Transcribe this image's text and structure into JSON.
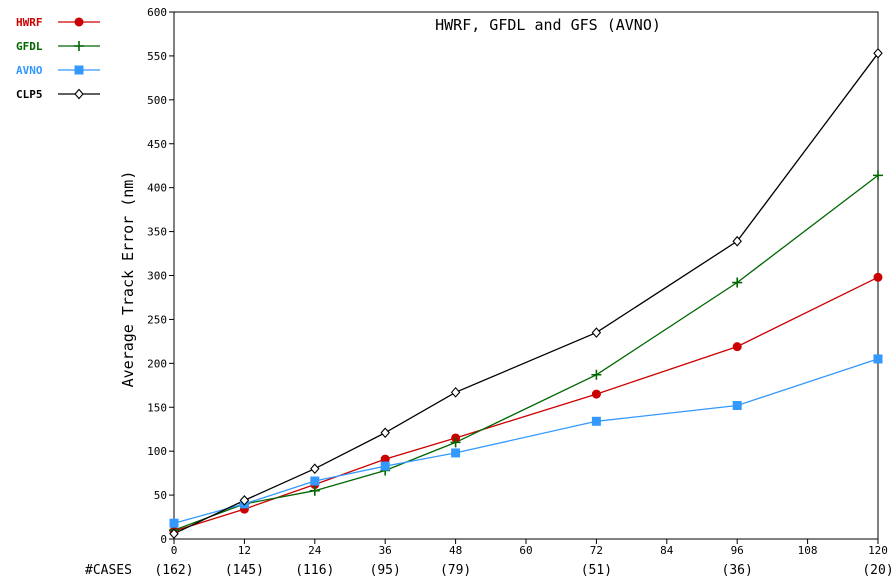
{
  "chart_data": {
    "type": "line",
    "title": "HWRF, GFDL and GFS (AVNO)",
    "ylabel": "Average Track Error (nm)",
    "xlabel": "",
    "xlim": [
      0,
      120
    ],
    "ylim": [
      0,
      600
    ],
    "x_ticks": [
      0,
      12,
      24,
      36,
      48,
      60,
      72,
      84,
      96,
      108,
      120
    ],
    "y_ticks": [
      0,
      50,
      100,
      150,
      200,
      250,
      300,
      350,
      400,
      450,
      500,
      550,
      600
    ],
    "cases_label": "#CASES",
    "cases": [
      {
        "x": 0,
        "label": "(162)"
      },
      {
        "x": 12,
        "label": "(145)"
      },
      {
        "x": 24,
        "label": "(116)"
      },
      {
        "x": 36,
        "label": "(95)"
      },
      {
        "x": 48,
        "label": "(79)"
      },
      {
        "x": 72,
        "label": "(51)"
      },
      {
        "x": 96,
        "label": "(36)"
      },
      {
        "x": 120,
        "label": "(20)"
      }
    ],
    "legend_position": "top-left-outside",
    "grid": false,
    "x": [
      0,
      12,
      24,
      36,
      48,
      72,
      96,
      120
    ],
    "series": [
      {
        "name": "HWRF",
        "color": "#cc0000",
        "marker": "circle",
        "values": [
          9,
          34,
          62,
          91,
          115,
          165,
          219,
          298
        ]
      },
      {
        "name": "GFDL",
        "color": "#006600",
        "marker": "plus",
        "values": [
          10,
          40,
          55,
          78,
          110,
          187,
          292,
          414
        ]
      },
      {
        "name": "AVNO",
        "color": "#3399ff",
        "marker": "square",
        "values": [
          18,
          40,
          66,
          83,
          98,
          134,
          152,
          205
        ]
      },
      {
        "name": "CLP5",
        "color": "#000000",
        "marker": "diamond",
        "values": [
          6,
          44,
          80,
          121,
          167,
          235,
          339,
          553
        ]
      }
    ]
  }
}
